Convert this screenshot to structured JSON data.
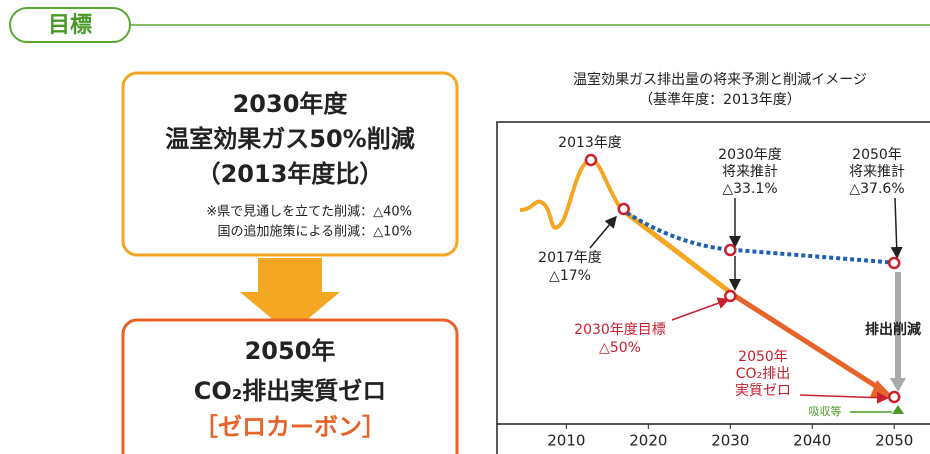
{
  "header": {
    "title": "目標"
  },
  "target_2030": {
    "lines": [
      "2030年度",
      "温室効果ガス50%削減",
      "（2013年度比）"
    ],
    "notes": [
      "※県で見通しを立てた削減：△40%",
      "国の追加施策による削減：△10%"
    ]
  },
  "target_2050": {
    "lines": [
      "2050年",
      "CO₂排出実質ゼロ",
      "［ゼロカーボン］"
    ]
  },
  "chart_data": {
    "type": "line",
    "title": "温室効果ガス排出量の将来予測と削減イメージ",
    "subtitle": "（基準年度：2013年度）",
    "xlim": [
      2003,
      2054
    ],
    "xticks": [
      2010,
      2020,
      2030,
      2040,
      2050
    ],
    "points_x": [
      2013,
      2017,
      2030,
      2030,
      2050,
      2050
    ],
    "annotations": [
      [
        "2013年度"
      ],
      [
        "2030年度",
        "将来推計",
        "△33.1%"
      ],
      [
        "2050年",
        "将来推計",
        "△37.6%"
      ],
      [
        "2017年度",
        "△17%"
      ],
      [
        "2030年度目標",
        "△50%"
      ],
      [
        "2050年",
        "CO₂排出",
        "実質ゼロ"
      ],
      [
        "排出削減"
      ],
      [
        "吸収等"
      ]
    ]
  }
}
